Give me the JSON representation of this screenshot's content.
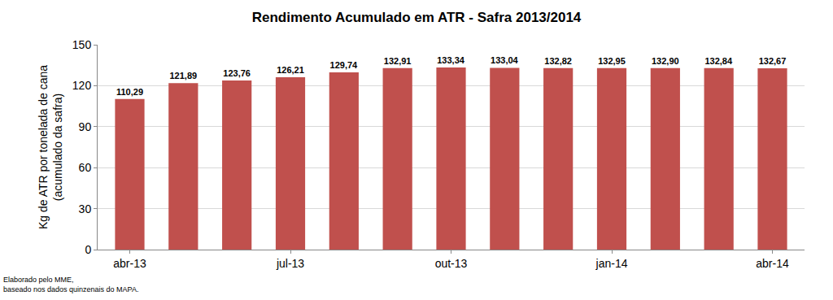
{
  "chart_data": {
    "type": "bar",
    "title": "Rendimento Acumulado em ATR - Safra 2013/2014",
    "y_label": [
      "Kg de ATR por tonelada de cana",
      "(acumulado da safra)"
    ],
    "annotations": [
      "Elaborado pelo MME,",
      "baseado nos dados quinzenais do MAPA."
    ],
    "categories": [
      "abr-13",
      null,
      null,
      "jul-13",
      null,
      null,
      "out-13",
      null,
      null,
      "jan-14",
      null,
      null,
      "abr-14"
    ],
    "values": [
      110.29,
      121.89,
      123.76,
      126.21,
      129.74,
      132.91,
      133.34,
      133.04,
      132.82,
      132.95,
      132.9,
      132.84,
      132.67
    ],
    "value_labels": [
      "110,29",
      "121,89",
      "123,76",
      "126,21",
      "129,74",
      "132,91",
      "133,34",
      "133,04",
      "132,82",
      "132,95",
      "132,90",
      "132,84",
      "132,67"
    ],
    "data_labels": true,
    "color": "#c0504d",
    "ylim": [
      0,
      150
    ],
    "yticks": [
      0,
      30,
      60,
      90,
      120,
      150
    ],
    "grid": true
  }
}
